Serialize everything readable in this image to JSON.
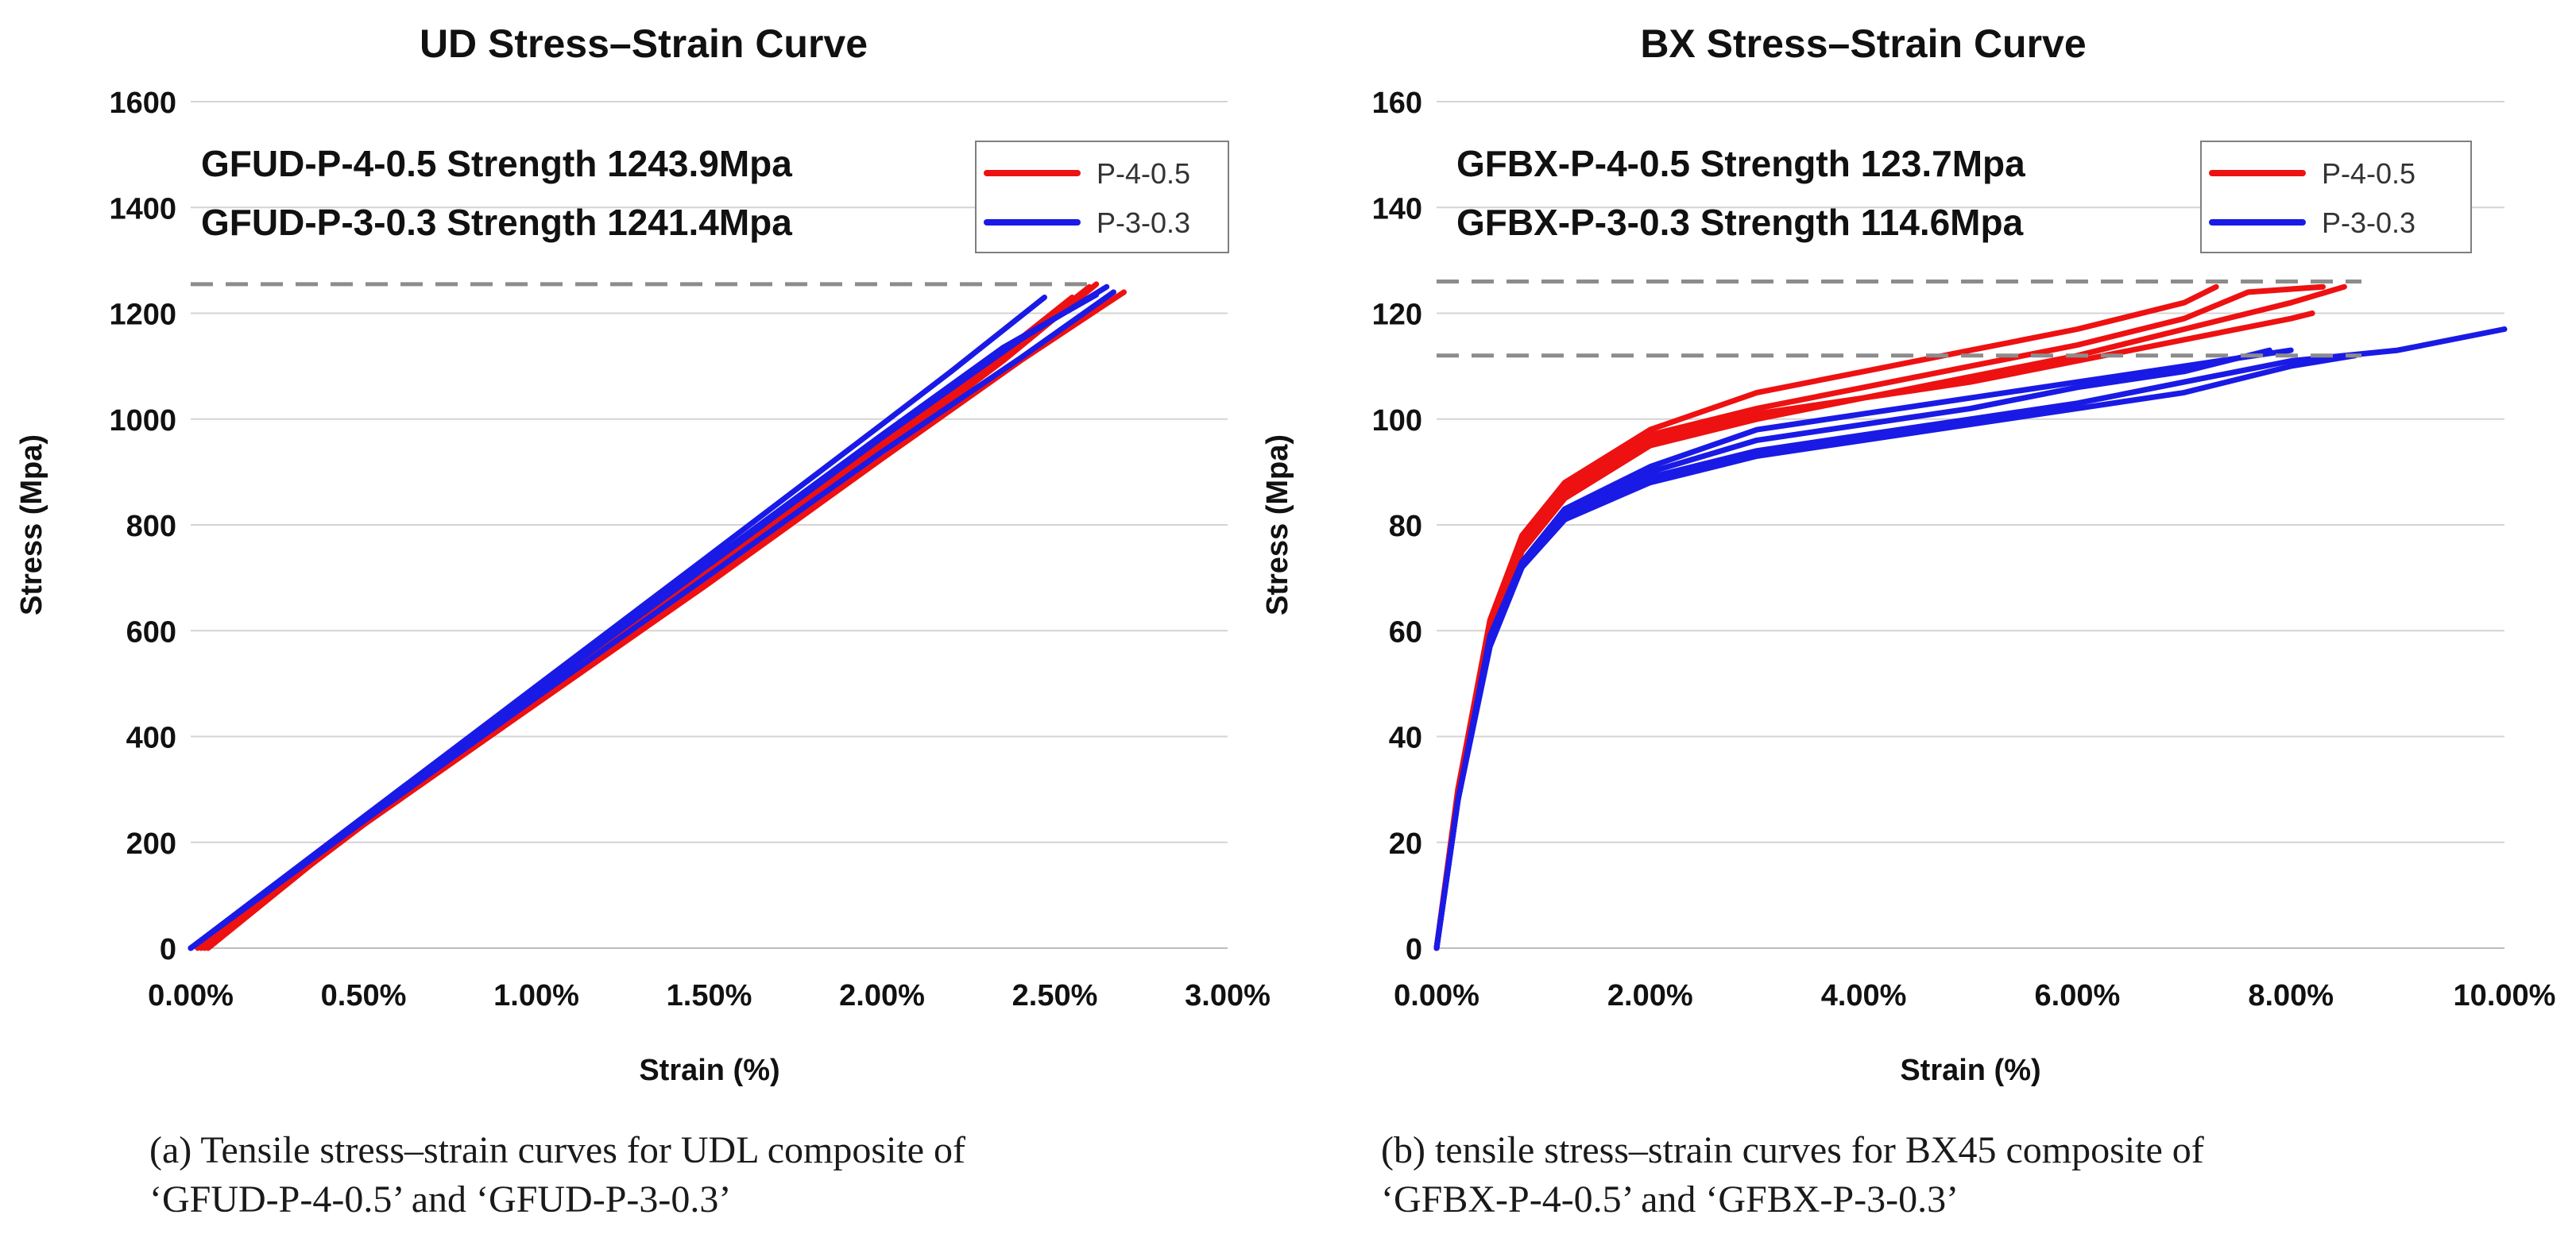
{
  "figure": {
    "caption_a": {
      "line1": "(a) Tensile stress–strain curves for UDL composite of",
      "line2": "‘GFUD-P-4-0.5’ and ‘GFUD-P-3-0.3’"
    },
    "caption_b": {
      "line1": "(b) tensile stress–strain curves for BX45 composite of",
      "line2": "‘GFBX-P-4-0.5’ and ‘GFBX-P-3-0.3’"
    }
  },
  "chart_data": [
    {
      "type": "line",
      "title": "UD Stress–Strain Curve",
      "xlabel": "Strain (%)",
      "ylabel": "Stress (Mpa)",
      "xlim": [
        0,
        3.0
      ],
      "ylim": [
        0,
        1600
      ],
      "xticks": [
        0,
        0.5,
        1.0,
        1.5,
        2.0,
        2.5,
        3.0
      ],
      "xtick_labels": [
        "0.00%",
        "0.50%",
        "1.00%",
        "1.50%",
        "2.00%",
        "2.50%",
        "3.00%"
      ],
      "yticks": [
        0,
        200,
        400,
        600,
        800,
        1000,
        1200,
        1400,
        1600
      ],
      "ytick_labels": [
        "0",
        "200",
        "400",
        "600",
        "800",
        "1000",
        "1200",
        "1400",
        "1600"
      ],
      "grid": "horizontal",
      "legend_position": "top-right",
      "annotations": [
        "GFUD-P-4-0.5 Strength  1243.9Mpa",
        "GFUD-P-3-0.3 Strength  1241.4Mpa"
      ],
      "reference_lines": [
        1255
      ],
      "colors": {
        "P-4-0.5": "#ee1111",
        "P-3-0.3": "#1a1ae6",
        "reference": "#8c8c8c"
      },
      "series": [
        {
          "name": "P-4-0.5",
          "color": "#ee1111",
          "curves": [
            [
              [
                0.05,
                0
              ],
              [
                0.5,
                238
              ],
              [
                1.0,
                470
              ],
              [
                1.5,
                703
              ],
              [
                2.0,
                950
              ],
              [
                2.3,
                1095
              ],
              [
                2.6,
                1250
              ]
            ],
            [
              [
                0.03,
                0
              ],
              [
                0.5,
                233
              ],
              [
                1.0,
                462
              ],
              [
                1.5,
                690
              ],
              [
                2.0,
                925
              ],
              [
                2.4,
                1110
              ],
              [
                2.7,
                1240
              ]
            ],
            [
              [
                0.02,
                0
              ],
              [
                0.5,
                240
              ],
              [
                1.0,
                478
              ],
              [
                1.5,
                712
              ],
              [
                2.0,
                960
              ],
              [
                2.3,
                1100
              ],
              [
                2.55,
                1230
              ]
            ],
            [
              [
                0.04,
                0
              ],
              [
                0.5,
                236
              ],
              [
                1.0,
                466
              ],
              [
                1.5,
                698
              ],
              [
                2.0,
                938
              ],
              [
                2.35,
                1110
              ],
              [
                2.62,
                1255
              ]
            ]
          ]
        },
        {
          "name": "P-3-0.3",
          "color": "#1a1ae6",
          "curves": [
            [
              [
                0,
                0
              ],
              [
                0.5,
                248
              ],
              [
                1.0,
                495
              ],
              [
                1.5,
                742
              ],
              [
                2.0,
                990
              ],
              [
                2.2,
                1090
              ],
              [
                2.47,
                1230
              ]
            ],
            [
              [
                0,
                0
              ],
              [
                0.5,
                243
              ],
              [
                1.0,
                485
              ],
              [
                1.5,
                725
              ],
              [
                2.0,
                965
              ],
              [
                2.4,
                1150
              ],
              [
                2.65,
                1250
              ]
            ],
            [
              [
                0,
                0
              ],
              [
                0.5,
                240
              ],
              [
                1.0,
                474
              ],
              [
                1.5,
                705
              ],
              [
                2.0,
                938
              ],
              [
                2.4,
                1115
              ],
              [
                2.67,
                1240
              ]
            ],
            [
              [
                0,
                0
              ],
              [
                0.5,
                245
              ],
              [
                1.0,
                488
              ],
              [
                1.5,
                730
              ],
              [
                2.0,
                970
              ],
              [
                2.35,
                1135
              ],
              [
                2.62,
                1235
              ]
            ]
          ]
        }
      ]
    },
    {
      "type": "line",
      "title": "BX Stress–Strain Curve",
      "xlabel": "Strain (%)",
      "ylabel": "Stress (Mpa)",
      "xlim": [
        0,
        10.0
      ],
      "ylim": [
        0,
        160
      ],
      "xticks": [
        0,
        2,
        4,
        6,
        8,
        10
      ],
      "xtick_labels": [
        "0.00%",
        "2.00%",
        "4.00%",
        "6.00%",
        "8.00%",
        "10.00%"
      ],
      "yticks": [
        0,
        20,
        40,
        60,
        80,
        100,
        120,
        140,
        160
      ],
      "ytick_labels": [
        "0",
        "20",
        "40",
        "60",
        "80",
        "100",
        "120",
        "140",
        "160"
      ],
      "grid": "horizontal",
      "legend_position": "top-right",
      "annotations": [
        "GFBX-P-4-0.5 Strength  123.7Mpa",
        "GFBX-P-3-0.3 Strength  114.6Mpa"
      ],
      "reference_lines": [
        126,
        112
      ],
      "colors": {
        "P-4-0.5": "#ee1111",
        "P-3-0.3": "#1a1ae6",
        "reference": "#8c8c8c"
      },
      "series": [
        {
          "name": "P-4-0.5",
          "color": "#ee1111",
          "curves": [
            [
              [
                0,
                0
              ],
              [
                0.2,
                30
              ],
              [
                0.5,
                62
              ],
              [
                0.8,
                78
              ],
              [
                1.2,
                88
              ],
              [
                2.0,
                98
              ],
              [
                3.0,
                105
              ],
              [
                4.0,
                109
              ],
              [
                5.0,
                113
              ],
              [
                6.0,
                117
              ],
              [
                7.0,
                122
              ],
              [
                7.3,
                125
              ]
            ],
            [
              [
                0,
                0
              ],
              [
                0.2,
                29
              ],
              [
                0.5,
                60
              ],
              [
                0.8,
                76
              ],
              [
                1.2,
                86
              ],
              [
                2.0,
                96
              ],
              [
                3.0,
                101
              ],
              [
                4.0,
                104
              ],
              [
                5.0,
                108
              ],
              [
                6.0,
                112
              ],
              [
                7.0,
                117
              ],
              [
                8.0,
                122
              ],
              [
                8.5,
                125
              ]
            ],
            [
              [
                0,
                0
              ],
              [
                0.2,
                29
              ],
              [
                0.5,
                60
              ],
              [
                0.8,
                75
              ],
              [
                1.2,
                85
              ],
              [
                2.0,
                95
              ],
              [
                3.0,
                100
              ],
              [
                4.0,
                104
              ],
              [
                5.0,
                107
              ],
              [
                6.0,
                111
              ],
              [
                7.0,
                115
              ],
              [
                8.0,
                119
              ],
              [
                8.2,
                120
              ]
            ],
            [
              [
                0,
                0
              ],
              [
                0.2,
                30
              ],
              [
                0.5,
                61
              ],
              [
                0.8,
                77
              ],
              [
                1.2,
                87
              ],
              [
                2.0,
                97
              ],
              [
                3.0,
                102
              ],
              [
                4.0,
                106
              ],
              [
                5.0,
                110
              ],
              [
                6.0,
                114
              ],
              [
                7.0,
                119
              ],
              [
                7.6,
                124
              ],
              [
                8.3,
                125
              ]
            ]
          ]
        },
        {
          "name": "P-3-0.3",
          "color": "#1a1ae6",
          "curves": [
            [
              [
                0,
                0
              ],
              [
                0.2,
                28
              ],
              [
                0.5,
                58
              ],
              [
                0.8,
                72
              ],
              [
                1.2,
                81
              ],
              [
                2.0,
                89
              ],
              [
                3.0,
                94
              ],
              [
                4.0,
                97
              ],
              [
                5.0,
                100
              ],
              [
                6.0,
                103
              ],
              [
                7.0,
                107
              ],
              [
                8.0,
                111
              ],
              [
                9.0,
                113
              ],
              [
                10.0,
                117
              ]
            ],
            [
              [
                0,
                0
              ],
              [
                0.2,
                28
              ],
              [
                0.5,
                59
              ],
              [
                0.8,
                73
              ],
              [
                1.2,
                82
              ],
              [
                2.0,
                90
              ],
              [
                3.0,
                96
              ],
              [
                4.0,
                99
              ],
              [
                5.0,
                102
              ],
              [
                6.0,
                106
              ],
              [
                7.0,
                109
              ],
              [
                7.8,
                113
              ]
            ],
            [
              [
                0,
                0
              ],
              [
                0.2,
                28
              ],
              [
                0.5,
                58
              ],
              [
                0.8,
                73
              ],
              [
                1.2,
                83
              ],
              [
                2.0,
                91
              ],
              [
                3.0,
                98
              ],
              [
                4.0,
                101
              ],
              [
                5.0,
                104
              ],
              [
                6.0,
                107
              ],
              [
                7.0,
                110
              ],
              [
                8.0,
                113
              ]
            ],
            [
              [
                0,
                0
              ],
              [
                0.2,
                28
              ],
              [
                0.5,
                57
              ],
              [
                0.8,
                72
              ],
              [
                1.2,
                81
              ],
              [
                2.0,
                88
              ],
              [
                3.0,
                93
              ],
              [
                4.0,
                96
              ],
              [
                5.0,
                99
              ],
              [
                6.0,
                102
              ],
              [
                7.0,
                105
              ],
              [
                8.0,
                110
              ],
              [
                8.6,
                112
              ]
            ]
          ]
        }
      ]
    }
  ]
}
